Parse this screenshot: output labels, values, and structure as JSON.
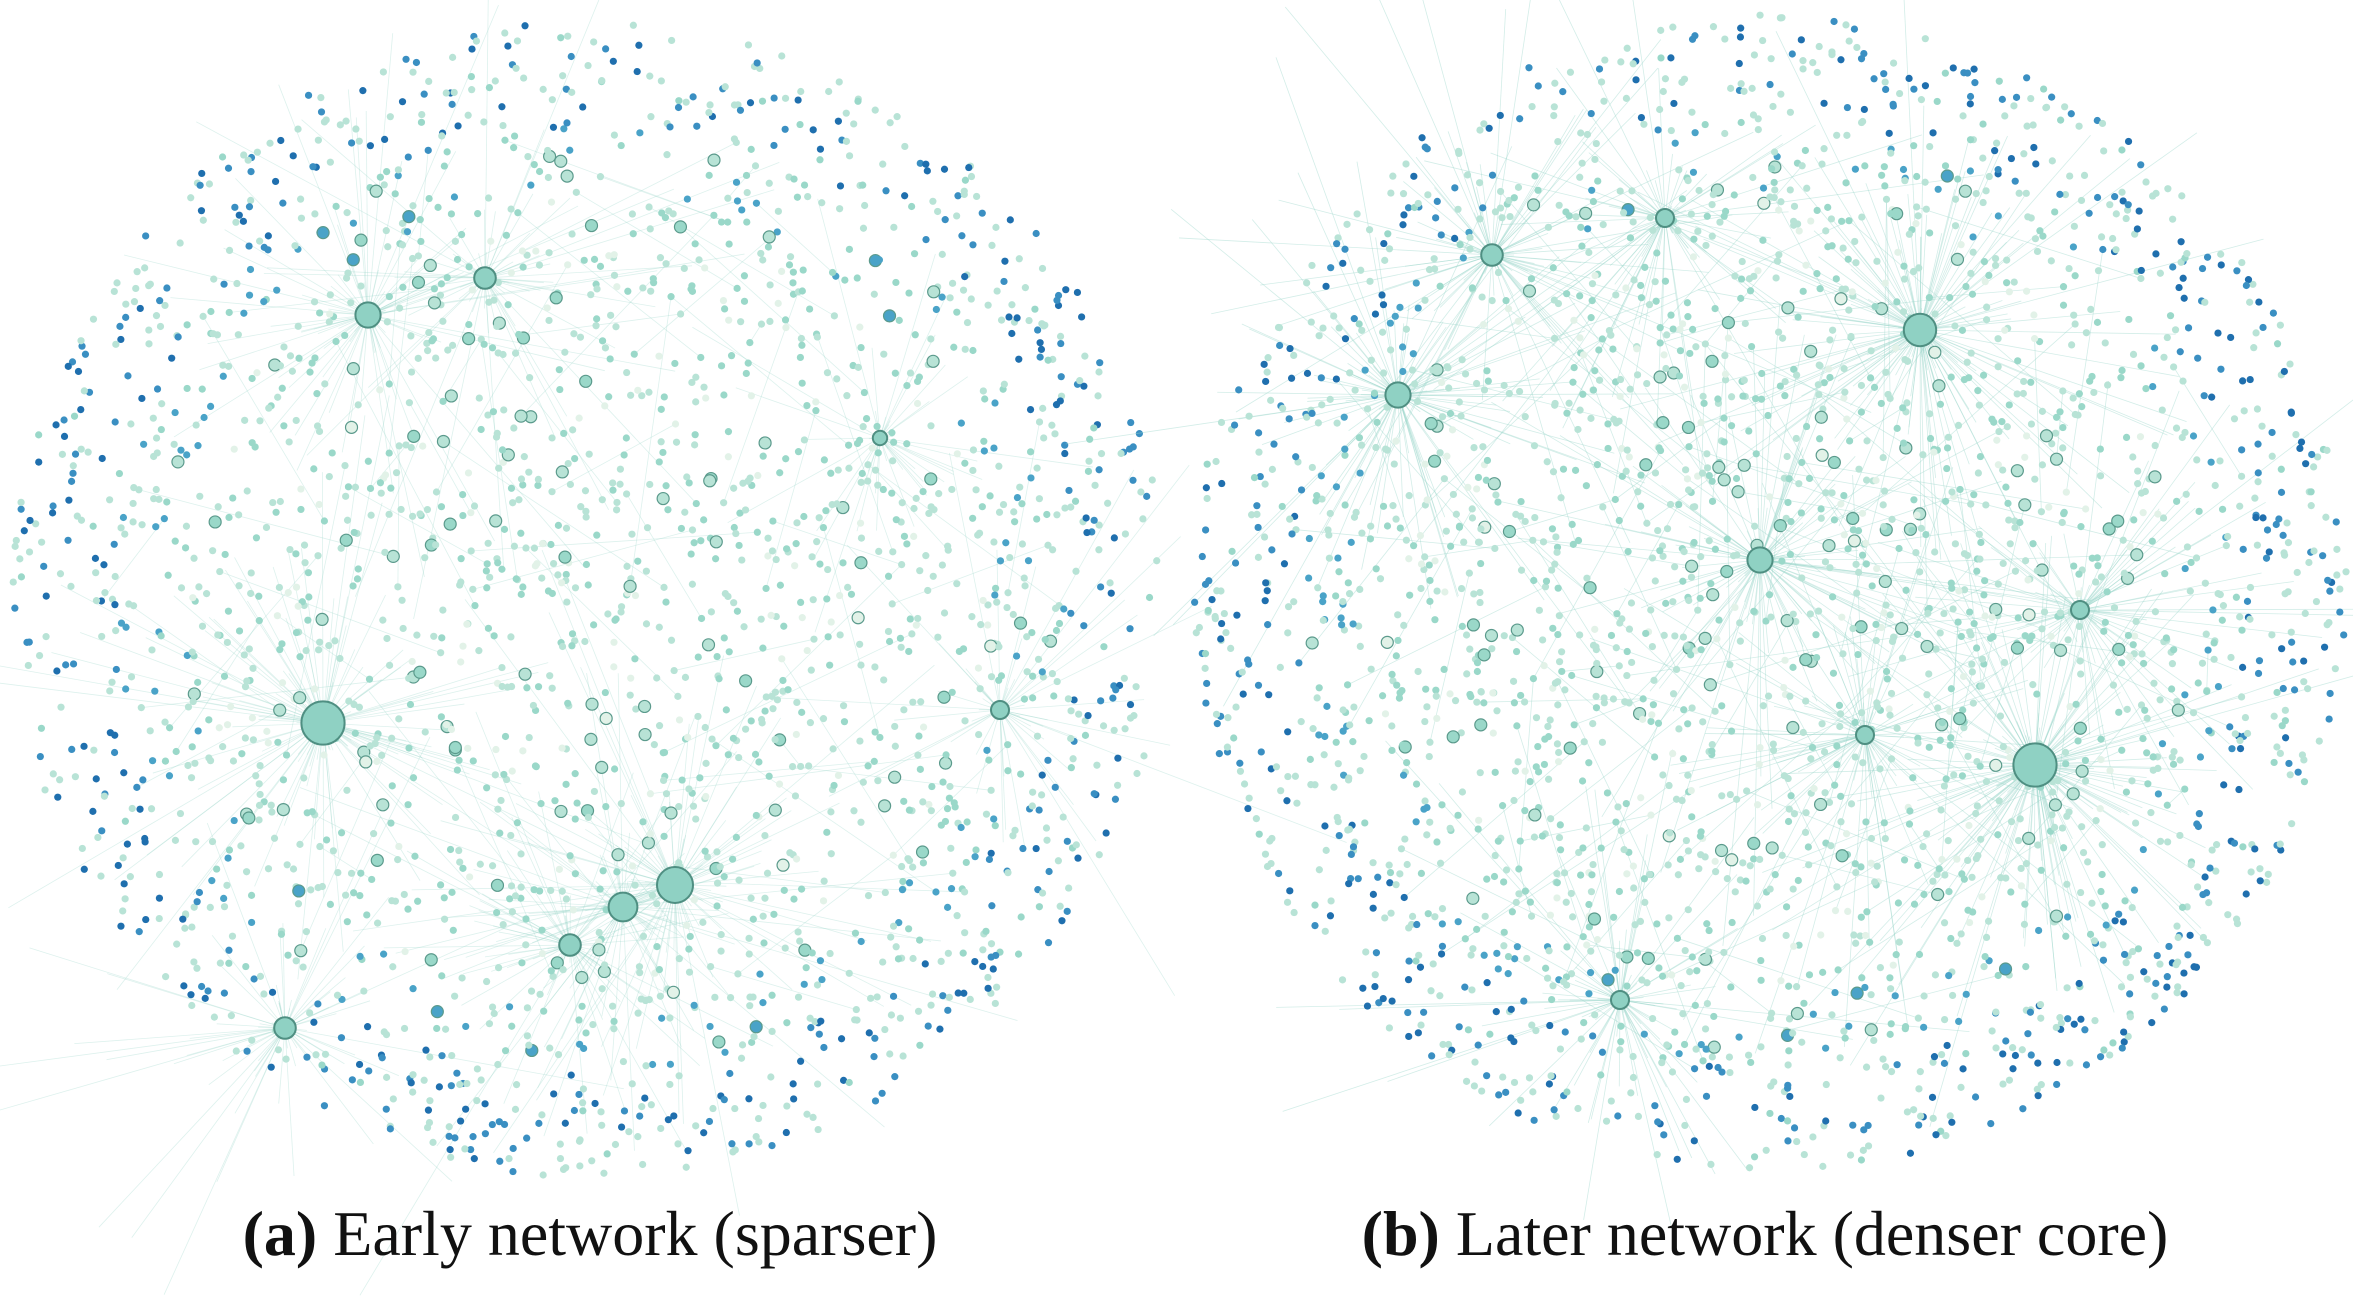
{
  "panels": [
    {
      "label": "(a)",
      "caption": "Early network (sparser)"
    },
    {
      "label": "(b)",
      "caption": "Later network (denser core)"
    }
  ]
}
